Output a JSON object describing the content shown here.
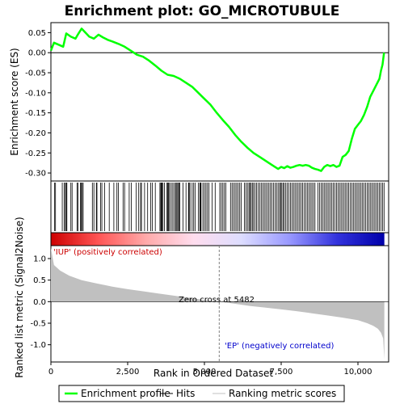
{
  "chart_data": {
    "type": "line",
    "title": "Enrichment plot: GO_MICROTUBULE",
    "xlabel": "Rank in Ordered Dataset",
    "ylabel_top": "Enrichment score (ES)",
    "ylabel_bottom": "Ranked list metric (Signal2Noise)",
    "xlim": [
      0,
      11000
    ],
    "x_ticks": [
      0,
      2500,
      5000,
      7500,
      10000
    ],
    "x_tick_labels": [
      "0",
      "2,500",
      "5,000",
      "7,500",
      "10,000"
    ],
    "es_ylim": [
      -0.32,
      0.075
    ],
    "es_ticks": [
      0.05,
      0.0,
      -0.05,
      -0.1,
      -0.15,
      -0.2,
      -0.25,
      -0.3
    ],
    "es_tick_labels": [
      "0.05",
      "0.00",
      "-0.05",
      "-0.10",
      "-0.15",
      "-0.20",
      "-0.25",
      "-0.30"
    ],
    "metric_ylim": [
      -1.4,
      1.3
    ],
    "metric_ticks": [
      1.0,
      0.5,
      0.0,
      -0.5,
      -1.0
    ],
    "metric_tick_labels": [
      "1.0",
      "0.5",
      "0.0",
      "-0.5",
      "-1.0"
    ],
    "series": [
      {
        "name": "Enrichment profile",
        "color": "#00ff00",
        "x": [
          0,
          100,
          250,
          400,
          500,
          650,
          800,
          900,
          1000,
          1100,
          1250,
          1400,
          1550,
          1700,
          1850,
          2000,
          2200,
          2400,
          2600,
          2800,
          3000,
          3200,
          3400,
          3600,
          3800,
          4000,
          4200,
          4400,
          4600,
          4800,
          5000,
          5200,
          5400,
          5600,
          5800,
          6000,
          6200,
          6400,
          6600,
          6800,
          7000,
          7200,
          7400,
          7500,
          7600,
          7700,
          7800,
          7900,
          8000,
          8100,
          8200,
          8300,
          8400,
          8500,
          8600,
          8700,
          8800,
          8900,
          9000,
          9100,
          9200,
          9300,
          9400,
          9500,
          9600,
          9700,
          9800,
          9900,
          10000,
          10100,
          10200,
          10300,
          10400,
          10500,
          10600,
          10700,
          10750,
          10800,
          10850
        ],
        "y": [
          0.005,
          0.025,
          0.02,
          0.015,
          0.048,
          0.04,
          0.035,
          0.048,
          0.06,
          0.052,
          0.04,
          0.035,
          0.045,
          0.038,
          0.032,
          0.028,
          0.022,
          0.015,
          0.005,
          -0.005,
          -0.01,
          -0.02,
          -0.032,
          -0.045,
          -0.055,
          -0.058,
          -0.065,
          -0.075,
          -0.085,
          -0.1,
          -0.115,
          -0.13,
          -0.15,
          -0.168,
          -0.185,
          -0.205,
          -0.222,
          -0.237,
          -0.25,
          -0.26,
          -0.27,
          -0.28,
          -0.29,
          -0.285,
          -0.288,
          -0.283,
          -0.287,
          -0.285,
          -0.282,
          -0.28,
          -0.282,
          -0.28,
          -0.282,
          -0.287,
          -0.29,
          -0.292,
          -0.295,
          -0.285,
          -0.28,
          -0.283,
          -0.28,
          -0.285,
          -0.282,
          -0.26,
          -0.255,
          -0.245,
          -0.215,
          -0.19,
          -0.18,
          -0.17,
          -0.155,
          -0.135,
          -0.11,
          -0.095,
          -0.08,
          -0.065,
          -0.045,
          -0.03,
          0.0
        ]
      }
    ],
    "metric_profile": {
      "x": [
        0,
        100,
        300,
        600,
        1000,
        1500,
        2000,
        2500,
        3000,
        3500,
        4000,
        4500,
        5000,
        5482,
        6000,
        6500,
        7000,
        7500,
        8000,
        8500,
        9000,
        9500,
        10000,
        10300,
        10500,
        10650,
        10750,
        10820,
        10860
      ],
      "y": [
        1.25,
        0.85,
        0.72,
        0.6,
        0.5,
        0.42,
        0.35,
        0.29,
        0.24,
        0.19,
        0.14,
        0.09,
        0.04,
        0.0,
        -0.05,
        -0.1,
        -0.14,
        -0.18,
        -0.22,
        -0.27,
        -0.32,
        -0.37,
        -0.43,
        -0.5,
        -0.56,
        -0.63,
        -0.72,
        -0.85,
        -1.35
      ]
    },
    "hits": [
      120,
      150,
      370,
      430,
      470,
      500,
      520,
      650,
      690,
      850,
      880,
      960,
      990,
      1020,
      1050,
      1350,
      1400,
      1480,
      1500,
      1620,
      1660,
      1750,
      1900,
      2050,
      2150,
      2200,
      2350,
      2400,
      2550,
      2620,
      2780,
      2860,
      2920,
      2950,
      3050,
      3150,
      3250,
      3300,
      3400,
      3550,
      3580,
      3600,
      3620,
      3650,
      3700,
      3780,
      3800,
      3830,
      3850,
      3900,
      3950,
      4000,
      4050,
      4080,
      4110,
      4150,
      4180,
      4200,
      4300,
      4400,
      4480,
      4500,
      4530,
      4600,
      4650,
      4700,
      4800,
      4850,
      4870,
      4890,
      4950,
      5000,
      5050,
      5100,
      5150,
      5250,
      5350,
      5500,
      5550,
      5600,
      5650,
      5700,
      5850,
      5900,
      5950,
      6000,
      6050,
      6100,
      6150,
      6200,
      6300,
      6350,
      6400,
      6450,
      6480,
      6520,
      6560,
      6600,
      6650,
      6700,
      6750,
      6800,
      6850,
      6900,
      6950,
      7000,
      7050,
      7100,
      7150,
      7200,
      7250,
      7300,
      7350,
      7400,
      7450,
      7480,
      7520,
      7560,
      7600,
      7650,
      7700,
      7750,
      7800,
      7850,
      7900,
      7950,
      8000,
      8050,
      8100,
      8150,
      8200,
      8250,
      8300,
      8350,
      8400,
      8450,
      8500,
      8550,
      8600,
      8700,
      8750,
      8800,
      8850,
      8900,
      8950,
      9000,
      9050,
      9100,
      9150,
      9200,
      9250,
      9300,
      9350,
      9400,
      9450,
      9500,
      9550,
      9600,
      9650,
      9700,
      9750,
      9800,
      9850,
      9900,
      9950,
      10000,
      10050,
      10100,
      10150,
      10200,
      10250,
      10300,
      10350,
      10400,
      10450,
      10500,
      10550,
      10600,
      10650,
      10700,
      10750,
      10800,
      10850
    ],
    "gradient_stops": [
      "#cc0000",
      "#ff5555",
      "#ffaaaa",
      "#ffddee",
      "#ddddff",
      "#9999ff",
      "#3333dd",
      "#0000aa"
    ],
    "annotations": {
      "positive": "'IUP' (positively correlated)",
      "negative": "'EP' (negatively correlated)",
      "zero_cross": "Zero cross at 5482",
      "zero_cross_x": 5482
    },
    "legend": {
      "placement": "bottom",
      "items": [
        {
          "label": "Enrichment profile",
          "color": "#00ff00"
        },
        {
          "label": "Hits",
          "color": "#000000"
        },
        {
          "label": "Ranking metric scores",
          "color": "#c0c0c0"
        }
      ]
    },
    "colors": {
      "positive_text": "#cc0000",
      "negative_text": "#0000cc",
      "metric_fill": "#c0c0c0",
      "zero_line": "#808080"
    }
  }
}
